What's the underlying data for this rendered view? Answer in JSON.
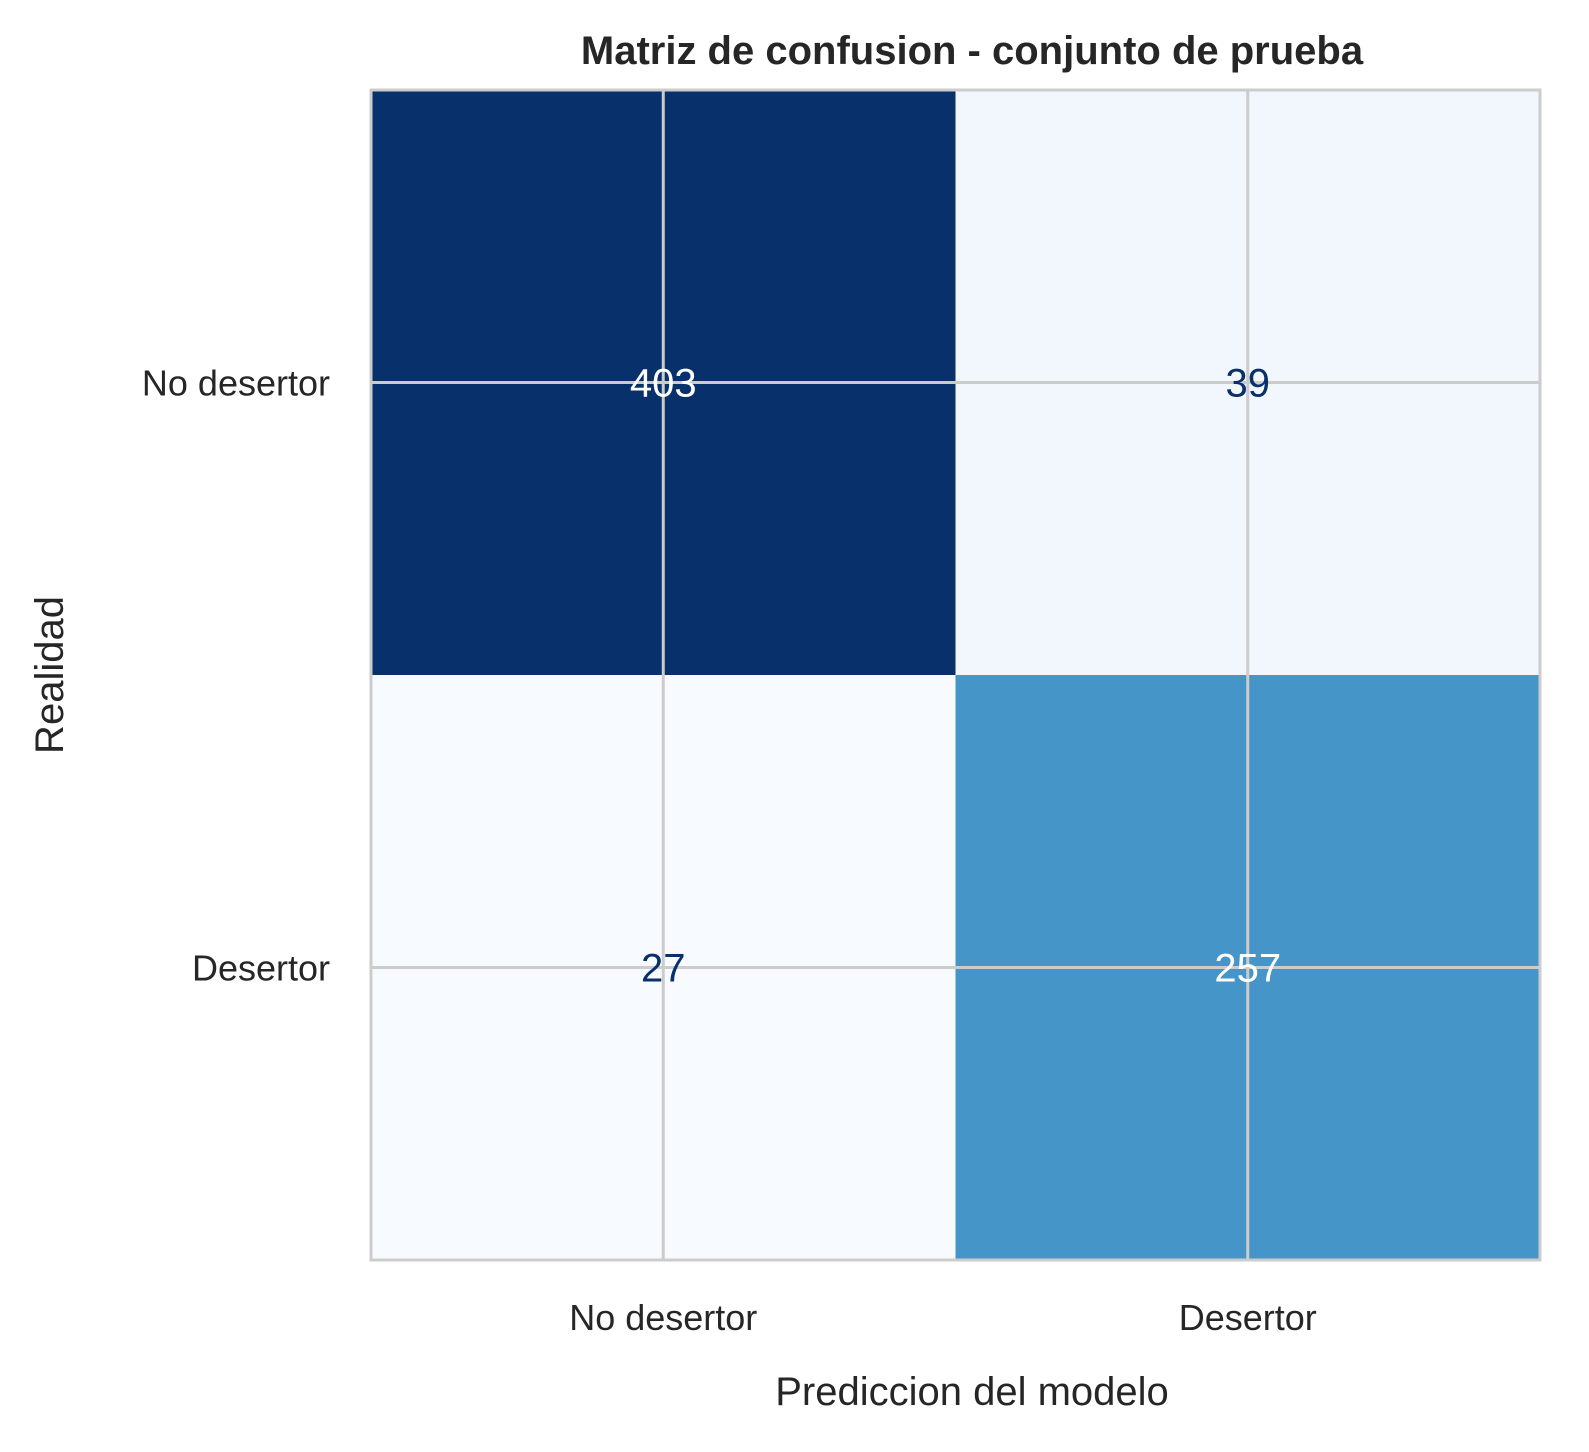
{
  "chart_data": {
    "type": "heatmap",
    "title": "Matriz de confusion - conjunto de prueba",
    "xlabel": "Prediccion del modelo",
    "ylabel": "Realidad",
    "x_categories": [
      "No desertor",
      "Desertor"
    ],
    "y_categories": [
      "No desertor",
      "Desertor"
    ],
    "values": [
      [
        403,
        39
      ],
      [
        27,
        257
      ]
    ],
    "colormap": "Blues",
    "colorbar": false,
    "grid": true
  },
  "colors": {
    "text": "#262626",
    "grid": "#cccccc",
    "dark_label": "#08306b",
    "light_label": "#ffffff"
  }
}
